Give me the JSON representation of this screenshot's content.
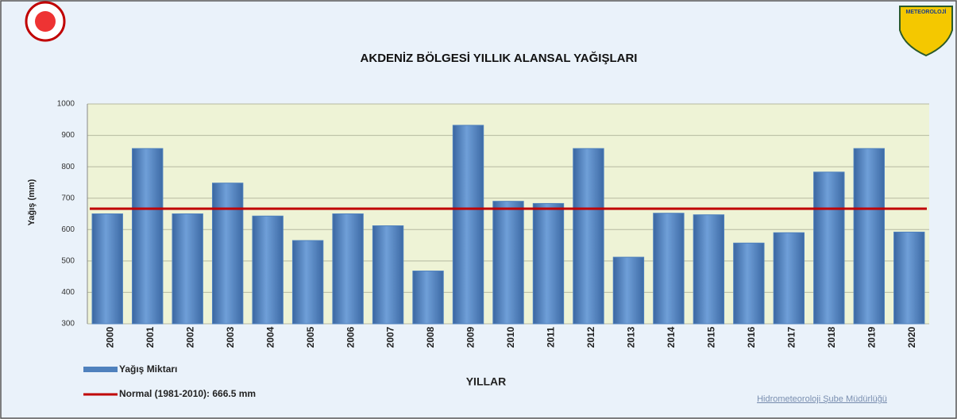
{
  "chart_data": {
    "type": "bar",
    "title": "AKDENİZ BÖLGESİ  YILLIK ALANSAL YAĞIŞLARI",
    "x_label": "YILLAR",
    "y_label": "Yağış (mm)",
    "categories": [
      "2000",
      "2001",
      "2002",
      "2003",
      "2004",
      "2005",
      "2006",
      "2007",
      "2008",
      "2009",
      "2010",
      "2011",
      "2012",
      "2013",
      "2014",
      "2015",
      "2016",
      "2017",
      "2018",
      "2019",
      "2020"
    ],
    "series": [
      {
        "name": "Yağış Miktarı",
        "color": "#4f81bd",
        "values": [
          650,
          858,
          650,
          748,
          643,
          565,
          650,
          612,
          468,
          932,
          690,
          683,
          858,
          512,
          652,
          647,
          557,
          590,
          783,
          858,
          592
        ]
      }
    ],
    "reference_line": {
      "name": "Normal (1981-2010): 666.5 mm",
      "value": 666.5,
      "color": "#c00000"
    },
    "ylim": [
      300,
      1000
    ],
    "yticks": [
      300,
      400,
      500,
      600,
      700,
      800,
      900,
      1000
    ],
    "grid": true,
    "footer": "Hidrometeoroloji Şube Müdürlüğü",
    "logo_text": "METEOROLOJİ"
  }
}
